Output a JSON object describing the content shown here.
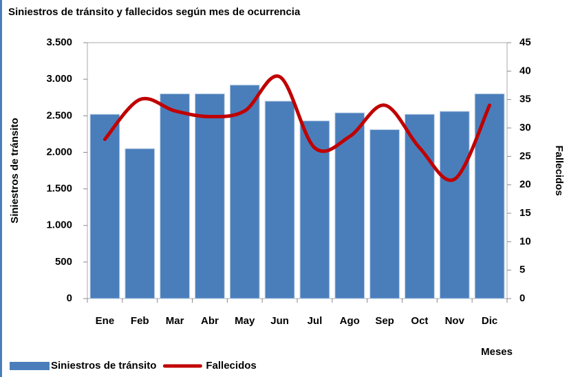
{
  "chart_data": {
    "type": "bar-line",
    "title": "Siniestros de tránsito y fallecidos según mes de ocurrencia",
    "x_label": "Meses",
    "y_label": "Siniestros de tránsito",
    "y2_label": "Fallecidos",
    "categories": [
      "Ene",
      "Feb",
      "Mar",
      "Abr",
      "May",
      "Jun",
      "Jul",
      "Ago",
      "Sep",
      "Oct",
      "Nov",
      "Dic"
    ],
    "series": [
      {
        "name": "Siniestros de tránsito",
        "type": "bar",
        "color": "#4a7ebb",
        "values": [
          2520,
          2050,
          2800,
          2800,
          2920,
          2700,
          2430,
          2540,
          2310,
          2520,
          2560,
          2800
        ]
      },
      {
        "name": "Fallecidos",
        "type": "line",
        "axis": "y2",
        "color": "#c00000",
        "values": [
          28,
          35,
          33,
          32,
          33,
          39,
          26.5,
          28.5,
          34,
          26.5,
          21,
          34
        ]
      }
    ],
    "ylim": [
      0,
      3500
    ],
    "yticks": [
      0,
      500,
      {
        "value": 1000,
        "label": "1.000"
      },
      {
        "value": 1500,
        "label": "1.500"
      },
      {
        "value": 2000,
        "label": "2.000"
      },
      {
        "value": 2500,
        "label": "2.500"
      },
      {
        "value": 3000,
        "label": "3.000"
      },
      {
        "value": 3500,
        "label": "3.500"
      }
    ],
    "y2lim": [
      0,
      45
    ],
    "y2ticks": [
      0,
      5,
      10,
      15,
      20,
      25,
      30,
      35,
      40,
      45
    ],
    "grid": false,
    "legend": "bottom-left"
  }
}
